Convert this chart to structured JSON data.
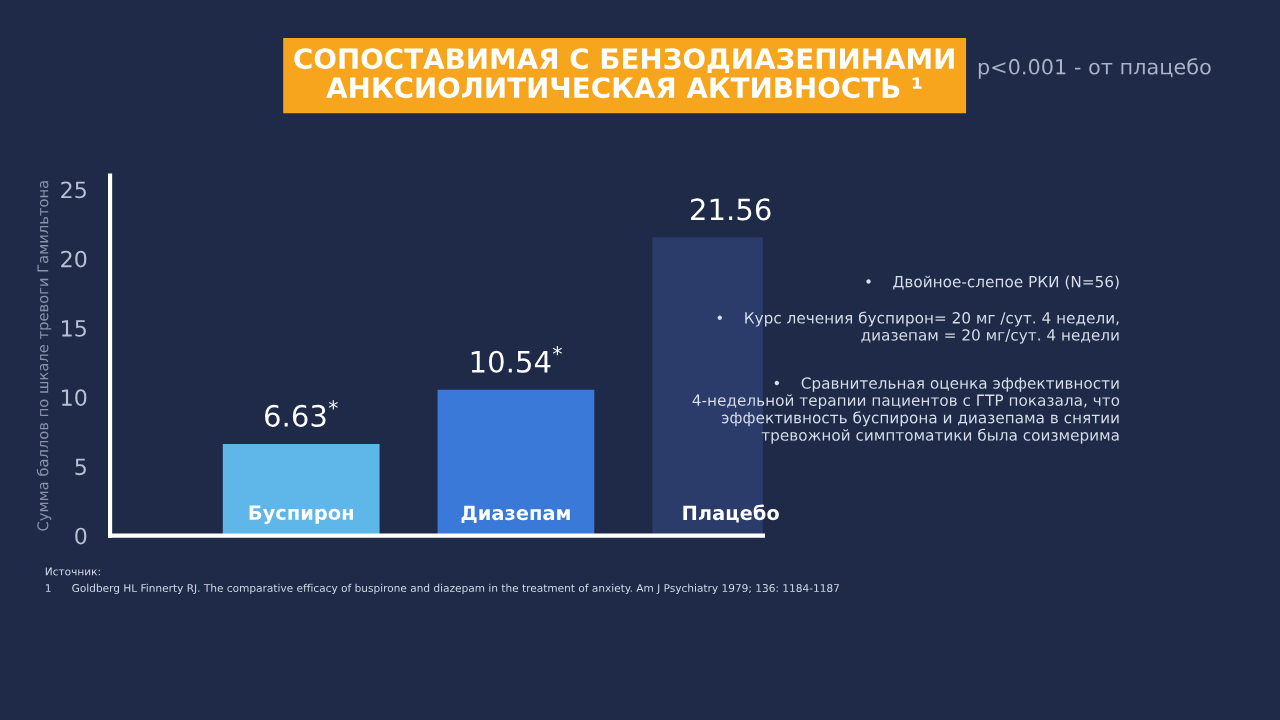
{
  "chart_data": {
    "type": "bar",
    "title": "СОПОСТАВИМАЯ С БЕНЗОДИАЗЕПИНАМИ\nАНКСИОЛИТИЧЕСКАЯ АКТИВНОСТЬ ¹",
    "subtitle": "p<0.001 - от плацебо",
    "ylabel": "Сумма баллов по шкале тревоги Гамильтона",
    "categories": [
      "Буспирон",
      "Диазепам",
      "Плацебо"
    ],
    "values": [
      6.63,
      10.54,
      21.56
    ],
    "colors": [
      "#5fb6e8",
      "#3b79d9",
      "#2b3b6a"
    ],
    "value_labels": [
      "6.63$^{*}$",
      "10.54$^{*}$",
      "21.56"
    ],
    "ylim": [
      0,
      26
    ],
    "yticks": [
      0,
      5,
      10,
      15,
      20,
      25
    ],
    "grid": false,
    "legend": false,
    "annotations": [
      "•    Двойное-слепое РКИ (N=56)",
      "•    Курс лечения буспирон= 20 мг /сут. 4 недели,\nдиазепам = 20 мг/сут. 4 недели",
      "•    Сравнительная оценка эффективности\n4-недельной терапии пациентов с ГТР показала, что\nэффективность буспирона и диазепама в снятии\nтревожной симптоматики была соизмерима",
      "Источник:",
      "1      Goldberg HL Finnerty RJ. The comparative efficacy of buspirone and diazepam in the treatment of anxiety. Am J Psychiatry 1979; 136: 1184-1187"
    ]
  }
}
